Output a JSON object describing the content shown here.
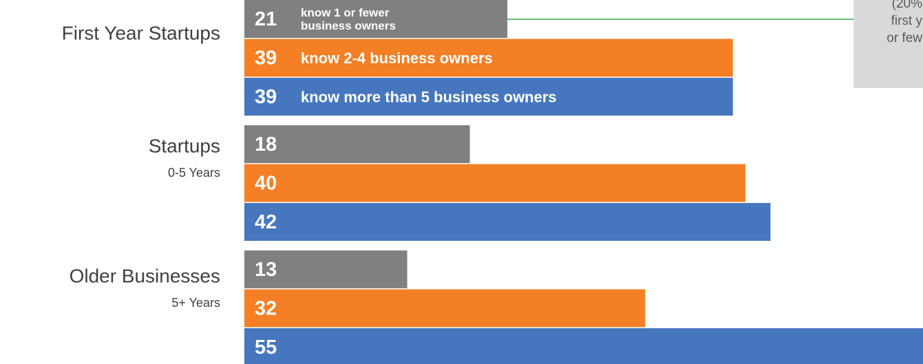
{
  "chart_data": {
    "type": "bar",
    "orientation": "horizontal",
    "categories": [
      "First Year Startups",
      "Startups",
      "Older Businesses"
    ],
    "category_subtitles": [
      null,
      "0-5 Years",
      "5+ Years"
    ],
    "series": [
      {
        "name": "know 1 or fewer\nbusiness owners",
        "color": "#808080",
        "values": [
          21,
          18,
          13
        ]
      },
      {
        "name": "know 2-4 business owners",
        "color": "#f47f24",
        "values": [
          39,
          40,
          32
        ]
      },
      {
        "name": "know more than 5 business owners",
        "color": "#4677be",
        "values": [
          39,
          42,
          55
        ]
      }
    ],
    "annotation": [
      "(20%",
      "first y",
      "or few"
    ]
  }
}
